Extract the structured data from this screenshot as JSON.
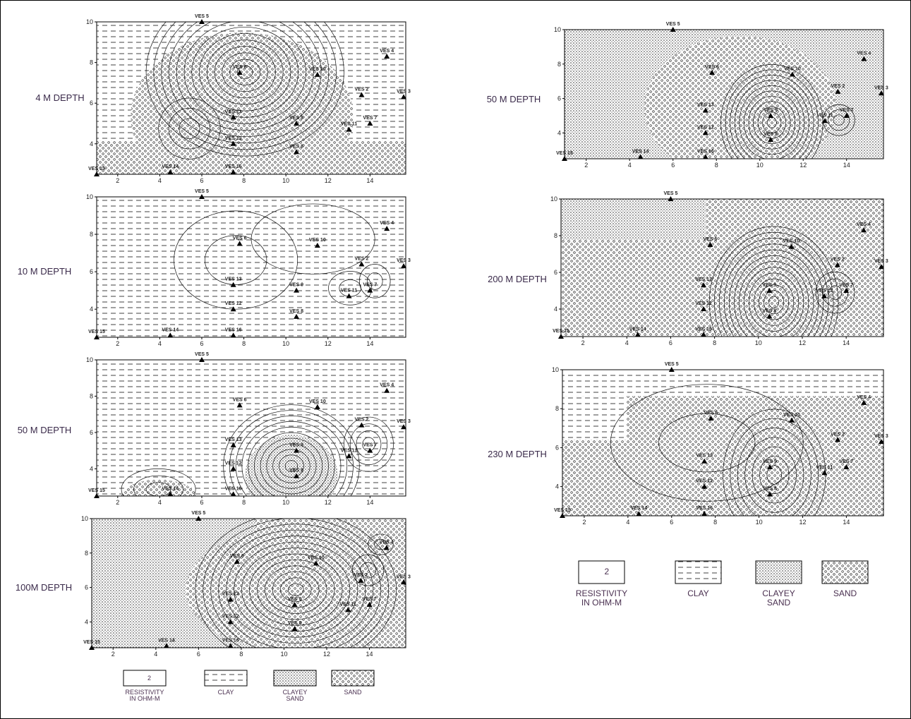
{
  "panels": [
    {
      "label": "4 M DEPTH",
      "xlim": [
        1,
        15.7
      ],
      "ylim": [
        2.5,
        10
      ],
      "xticks": [
        2,
        4,
        6,
        8,
        10,
        12,
        14
      ],
      "yticks": [
        4,
        6,
        8,
        10
      ]
    },
    {
      "label": "10 M DEPTH",
      "xlim": [
        1,
        15.7
      ],
      "ylim": [
        2.5,
        10
      ],
      "xticks": [
        2,
        4,
        6,
        8,
        10,
        12,
        14
      ],
      "yticks": [
        4,
        6,
        8,
        10
      ]
    },
    {
      "label": "50 M DEPTH",
      "xlim": [
        1,
        15.7
      ],
      "ylim": [
        2.5,
        10
      ],
      "xticks": [
        2,
        4,
        6,
        8,
        10,
        12,
        14
      ],
      "yticks": [
        4,
        6,
        8,
        10
      ]
    },
    {
      "label": "100M DEPTH",
      "xlim": [
        1,
        15.7
      ],
      "ylim": [
        2.5,
        10
      ],
      "xticks": [
        2,
        4,
        6,
        8,
        10,
        12,
        14
      ],
      "yticks": [
        4,
        6,
        8,
        10
      ]
    },
    {
      "label": "50 M DEPTH",
      "xlim": [
        1,
        15.7
      ],
      "ylim": [
        2.5,
        10
      ],
      "xticks": [
        2,
        4,
        6,
        8,
        10,
        12,
        14
      ],
      "yticks": [
        4,
        6,
        8,
        10
      ]
    },
    {
      "label": "200 M DEPTH",
      "xlim": [
        1,
        15.7
      ],
      "ylim": [
        2.5,
        10
      ],
      "xticks": [
        2,
        4,
        6,
        8,
        10,
        12,
        14
      ],
      "yticks": [
        4,
        6,
        8,
        10
      ]
    },
    {
      "label": "230 M DEPTH",
      "xlim": [
        1,
        15.7
      ],
      "ylim": [
        2.5,
        10
      ],
      "xticks": [
        2,
        4,
        6,
        8,
        10,
        12,
        14
      ],
      "yticks": [
        4,
        6,
        8,
        10
      ]
    }
  ],
  "stations": [
    {
      "name": "VES 5",
      "x": 6,
      "y": 10
    },
    {
      "name": "VES 4",
      "x": 14.8,
      "y": 8.3
    },
    {
      "name": "VES 3",
      "x": 15.6,
      "y": 6.3
    },
    {
      "name": "VES 2",
      "x": 13.6,
      "y": 6.4
    },
    {
      "name": "VES 6",
      "x": 7.8,
      "y": 7.5
    },
    {
      "name": "VES 10",
      "x": 11.5,
      "y": 7.4
    },
    {
      "name": "VES 13",
      "x": 7.5,
      "y": 5.3
    },
    {
      "name": "VES 12",
      "x": 7.5,
      "y": 4
    },
    {
      "name": "VES 9",
      "x": 10.5,
      "y": 5
    },
    {
      "name": "VES 8",
      "x": 10.5,
      "y": 3.6
    },
    {
      "name": "VES 11",
      "x": 13,
      "y": 4.7
    },
    {
      "name": "VES 7",
      "x": 14,
      "y": 5
    },
    {
      "name": "VES 15",
      "x": 1,
      "y": 2.5
    },
    {
      "name": "VES 14",
      "x": 4.5,
      "y": 2.6
    },
    {
      "name": "VES 16",
      "x": 7.5,
      "y": 2.6
    }
  ],
  "legend": {
    "sample": "2",
    "items": [
      "RESISTIVITY IN OHM-M",
      "CLAY",
      "CLAYEY SAND",
      "SAND"
    ]
  }
}
